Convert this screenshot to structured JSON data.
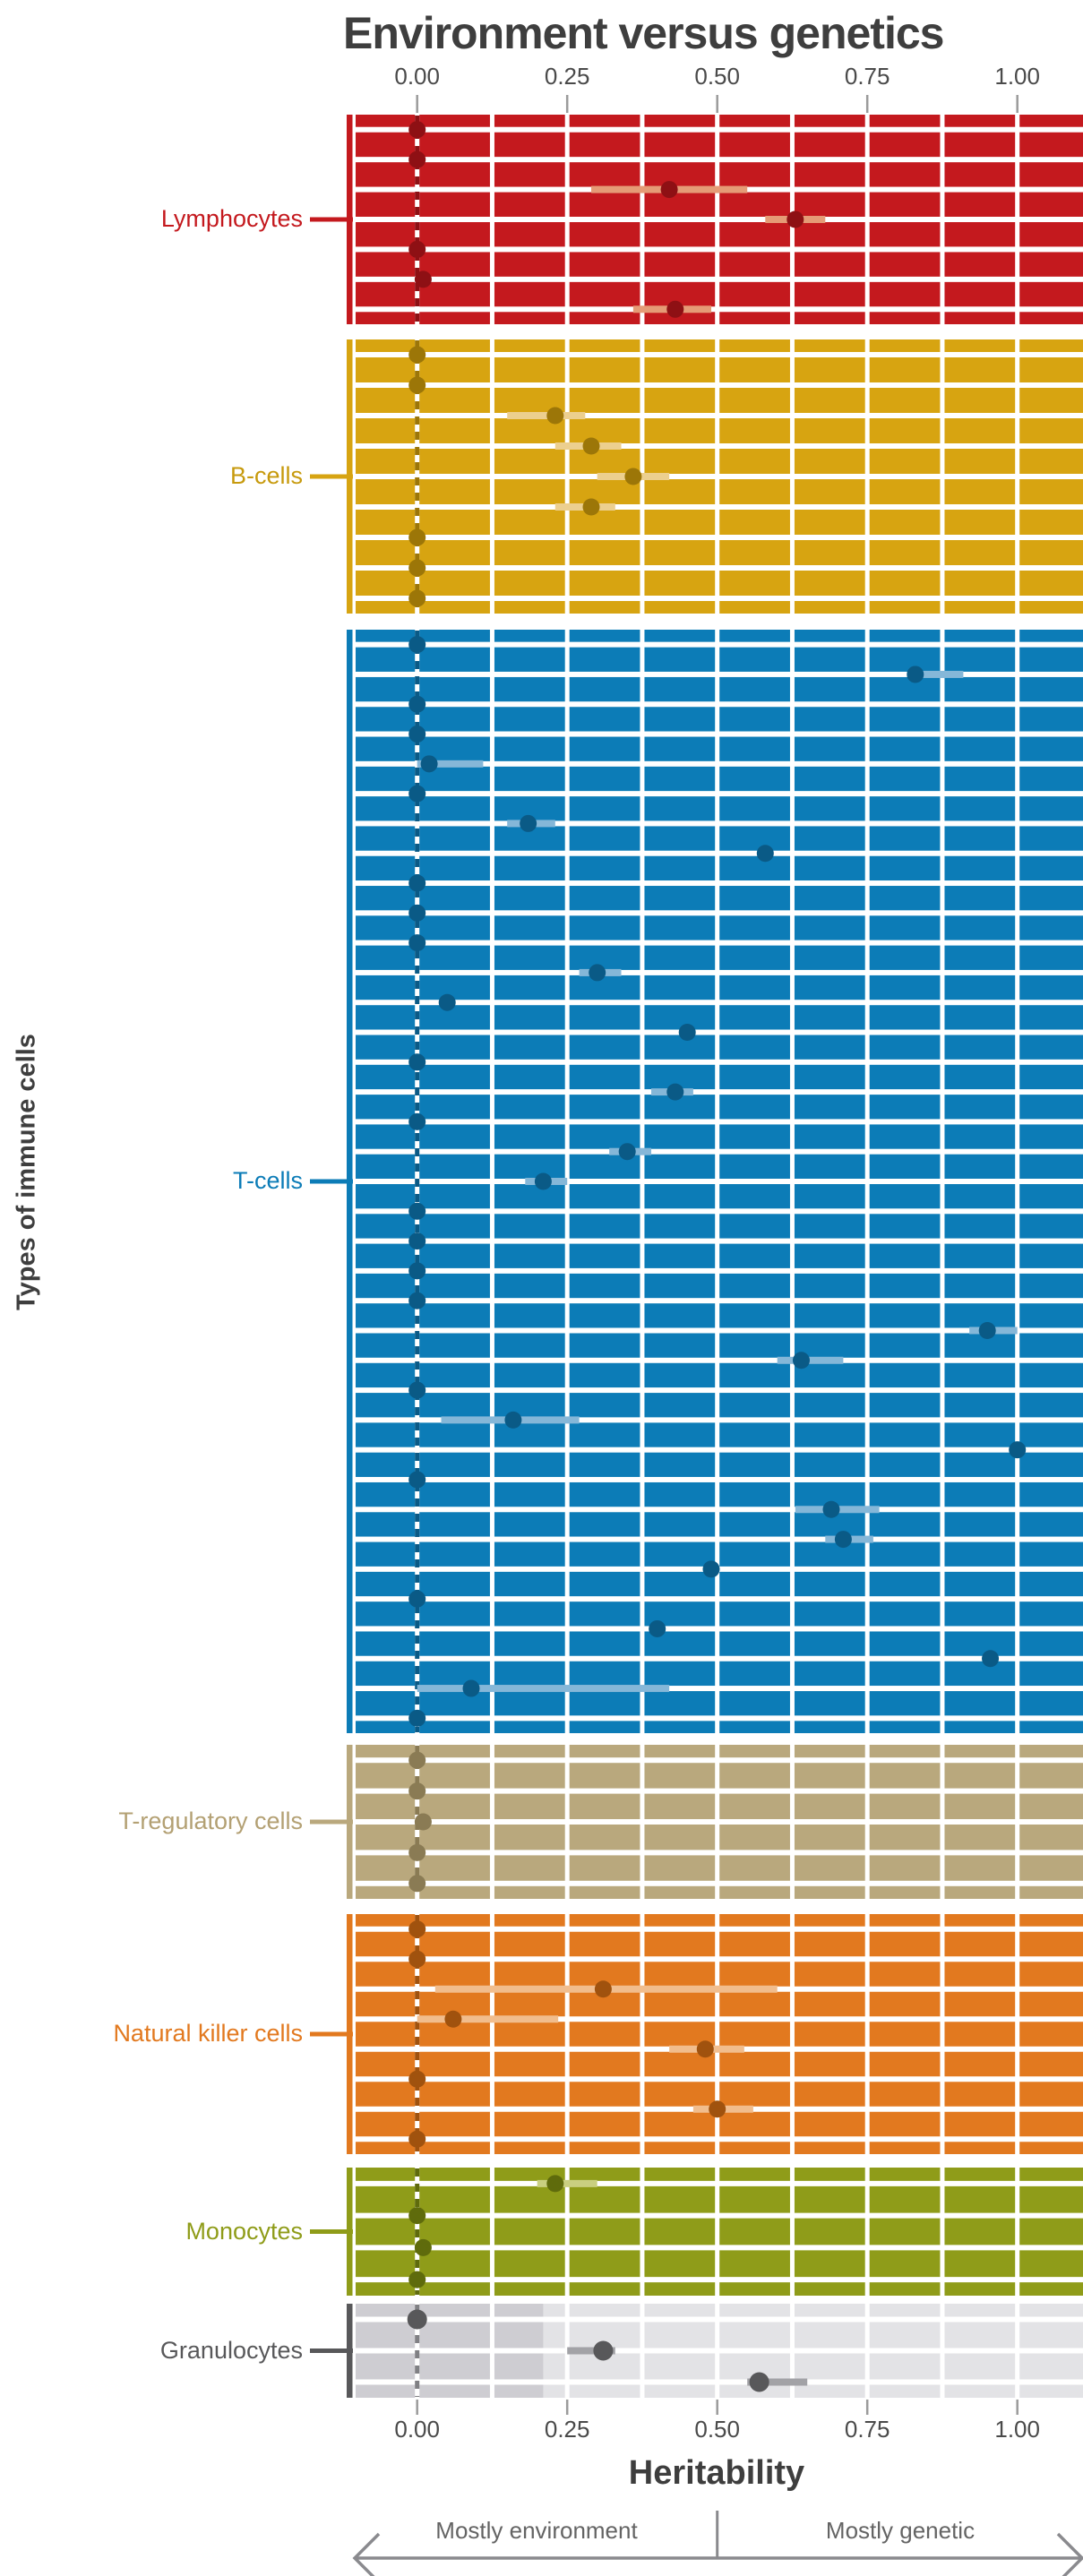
{
  "title": "Environment versus genetics",
  "axis": {
    "ylabel": "Types of immune cells",
    "xlabel_bottom": "Heritability",
    "ticks": [
      "0.00",
      "0.25",
      "0.50",
      "0.75",
      "1.00"
    ],
    "tick_values": [
      0,
      0.25,
      0.5,
      0.75,
      1.0
    ]
  },
  "annotations": {
    "left": "Mostly environment",
    "right": "Mostly genetic"
  },
  "colors": {
    "background": "#ffffff",
    "title": "#3e3e3e",
    "tick_label": "#4a4a4a",
    "tick_mark": "#9b9b9b",
    "grid_white": "#ffffff",
    "annotation_text": "#646464",
    "arrow": "#8a8a8e",
    "gray_zero_dash": "#808084"
  },
  "chart_data": {
    "type": "scatter",
    "subtype": "dot-with-CI-rows-grouped-by-cell-type",
    "xlabel": "Heritability",
    "ylabel": "Types of immune cells",
    "x_domain": [
      -0.103,
      1.109
    ],
    "gridline_step": 0.125,
    "x_ticks": [
      0,
      0.25,
      0.5,
      0.75,
      1.0
    ],
    "legend_position": "left-category-labels",
    "groups": [
      {
        "label": "Lymphocytes",
        "bar": "#c4191e",
        "dark": "#8e1014",
        "light": "#e59b76",
        "label_color": "#c4191e",
        "rows": [
          [
            0,
            -0.02,
            0.02
          ],
          [
            0,
            -0.02,
            0.02
          ],
          [
            0.42,
            0.29,
            0.55
          ],
          [
            0.63,
            0.58,
            0.68
          ],
          [
            0,
            -0.02,
            0.03
          ],
          [
            0.01,
            -0.02,
            0.04
          ],
          [
            0.43,
            0.36,
            0.49
          ]
        ]
      },
      {
        "label": "B-cells",
        "bar": "#d7a411",
        "dark": "#9c7608",
        "light": "#eccf8f",
        "label_color": "#c79a0d",
        "rows": [
          [
            0,
            -0.02,
            0.02
          ],
          [
            0,
            -0.02,
            0.03
          ],
          [
            0.23,
            0.15,
            0.28
          ],
          [
            0.29,
            0.23,
            0.34
          ],
          [
            0.36,
            0.3,
            0.42
          ],
          [
            0.29,
            0.23,
            0.33
          ],
          [
            0,
            -0.02,
            0.03
          ],
          [
            0,
            -0.02,
            0.02
          ],
          [
            0,
            -0.02,
            0.02
          ]
        ]
      },
      {
        "label": "T-cells",
        "bar": "#0c7cb7",
        "dark": "#0a5a86",
        "light": "#85b7d8",
        "label_color": "#0c7cb7",
        "rows": [
          [
            0,
            -0.02,
            0.02
          ],
          [
            0.83,
            0.82,
            0.91
          ],
          [
            0,
            -0.02,
            0.02
          ],
          [
            0,
            -0.02,
            0.02
          ],
          [
            0.02,
            0.0,
            0.11
          ],
          [
            0,
            -0.02,
            0.03
          ],
          [
            0.185,
            0.15,
            0.23
          ],
          [
            0.58,
            0.55,
            0.62
          ],
          [
            0,
            -0.02,
            0.02
          ],
          [
            0,
            -0.02,
            0.02
          ],
          [
            0,
            -0.02,
            0.02
          ],
          [
            0.3,
            0.27,
            0.34
          ],
          [
            0.05,
            0.02,
            0.08
          ],
          [
            0.45,
            0.42,
            0.48
          ],
          [
            0,
            -0.02,
            0.02
          ],
          [
            0.43,
            0.39,
            0.46
          ],
          [
            0,
            -0.02,
            0.02
          ],
          [
            0.35,
            0.32,
            0.39
          ],
          [
            0.21,
            0.18,
            0.25
          ],
          [
            0,
            -0.02,
            0.02
          ],
          [
            0,
            -0.02,
            0.02
          ],
          [
            0,
            -0.02,
            0.02
          ],
          [
            0,
            -0.02,
            0.02
          ],
          [
            0.95,
            0.92,
            1.0
          ],
          [
            0.64,
            0.6,
            0.71
          ],
          [
            0,
            -0.02,
            0.02
          ],
          [
            0.16,
            0.04,
            0.27
          ],
          [
            1.0,
            0.97,
            1.03
          ],
          [
            0,
            -0.02,
            0.02
          ],
          [
            0.69,
            0.63,
            0.77
          ],
          [
            0.71,
            0.68,
            0.76
          ],
          [
            0.49,
            0.46,
            0.52
          ],
          [
            0,
            -0.02,
            0.02
          ],
          [
            0.4,
            0.38,
            0.43
          ],
          [
            0.955,
            0.93,
            0.98
          ],
          [
            0.09,
            0.0,
            0.42
          ],
          [
            0,
            -0.02,
            0.02
          ]
        ]
      },
      {
        "label": "T-regulatory cells",
        "bar": "#b9a87d",
        "dark": "#8a7b54",
        "light": "#d8cfb2",
        "label_color": "#b3a073",
        "rows": [
          [
            0,
            -0.02,
            0.02
          ],
          [
            0,
            -0.02,
            0.02
          ],
          [
            0.01,
            -0.01,
            0.04
          ],
          [
            0,
            -0.02,
            0.02
          ],
          [
            0,
            -0.02,
            0.02
          ]
        ]
      },
      {
        "label": "Natural killer cells",
        "bar": "#e2791f",
        "dark": "#a0520e",
        "light": "#f1bd8d",
        "label_color": "#e2791f",
        "rows": [
          [
            0,
            -0.02,
            0.02
          ],
          [
            0,
            -0.02,
            0.03
          ],
          [
            0.31,
            0.03,
            0.6
          ],
          [
            0.06,
            0.0,
            0.235
          ],
          [
            0.48,
            0.42,
            0.545
          ],
          [
            0,
            -0.02,
            0.02
          ],
          [
            0.5,
            0.46,
            0.56
          ],
          [
            0,
            -0.02,
            0.02
          ]
        ]
      },
      {
        "label": "Monocytes",
        "bar": "#8f9c19",
        "dark": "#5f6b0c",
        "light": "#c9cf80",
        "label_color": "#8f9c19",
        "rows": [
          [
            0.23,
            0.2,
            0.3
          ],
          [
            0,
            -0.02,
            0.02
          ],
          [
            0.01,
            -0.01,
            0.04
          ],
          [
            0,
            -0.02,
            0.02
          ]
        ]
      },
      {
        "label": "Granulocytes",
        "bar": "#e3e3e6",
        "dark": "#58585a",
        "light": "#a2a2a6",
        "label_color": "#58585a",
        "shade": "#cecdd2",
        "shade_end": 0.21,
        "rows": [
          [
            0,
            -0.03,
            0.03
          ],
          [
            0.31,
            0.25,
            0.33
          ],
          [
            0.57,
            0.55,
            0.65
          ]
        ]
      }
    ]
  }
}
